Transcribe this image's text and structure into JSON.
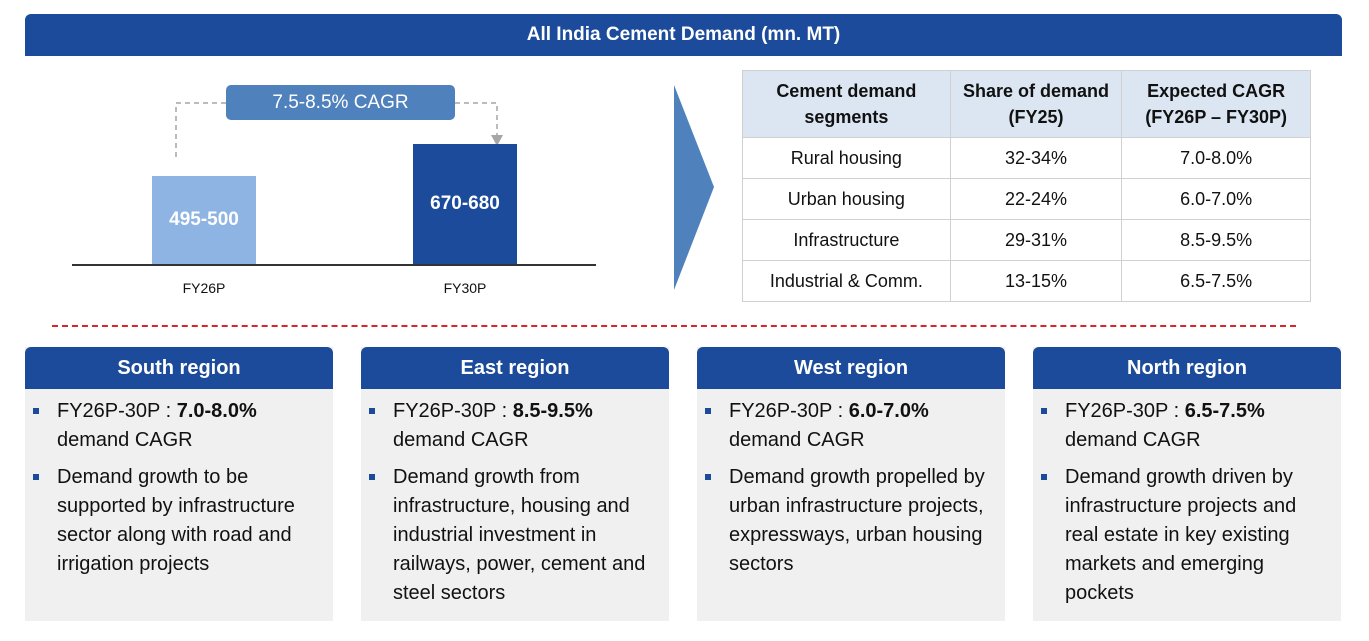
{
  "title": "All India Cement Demand (mn. MT)",
  "chart_data": {
    "type": "bar",
    "title": "All India Cement Demand (mn. MT)",
    "categories": [
      "FY26P",
      "FY30P"
    ],
    "values": [
      497.5,
      675
    ],
    "ranges": [
      [
        495,
        500
      ],
      [
        670,
        680
      ]
    ],
    "data_labels": [
      "495-500",
      "670-680"
    ],
    "annotation": "7.5-8.5% CAGR",
    "colors": [
      "#8eb4e3",
      "#1c4b9c"
    ],
    "ylim": [
      0,
      750
    ]
  },
  "table": {
    "headers": [
      "Cement demand segments",
      "Share of demand (FY25)",
      "Expected CAGR (FY26P – FY30P)"
    ],
    "rows": [
      [
        "Rural housing",
        "32-34%",
        "7.0-8.0%"
      ],
      [
        "Urban housing",
        "22-24%",
        "6.0-7.0%"
      ],
      [
        "Infrastructure",
        "29-31%",
        "8.5-9.5%"
      ],
      [
        "Industrial & Comm.",
        "13-15%",
        "6.5-7.5%"
      ]
    ]
  },
  "regions": [
    {
      "name": "South region",
      "prefix": "FY26P-30P : ",
      "cagr": "7.0-8.0%",
      "suffix": "demand CAGR",
      "desc": "Demand growth to be supported by infrastructure sector along with road and irrigation projects"
    },
    {
      "name": "East region",
      "prefix": "FY26P-30P : ",
      "cagr": "8.5-9.5%",
      "suffix": "demand CAGR",
      "desc": "Demand growth from infrastructure, housing and industrial investment in railways, power, cement and steel sectors"
    },
    {
      "name": "West region",
      "prefix": "FY26P-30P : ",
      "cagr": "6.0-7.0%",
      "suffix": "demand CAGR",
      "desc": "Demand growth propelled by urban infrastructure projects, expressways, urban housing sectors"
    },
    {
      "name": "North region",
      "prefix": "FY26P-30P : ",
      "cagr": "6.5-7.5%",
      "suffix": "demand CAGR",
      "desc": "Demand growth driven by infrastructure projects and real estate in key existing markets and emerging pockets"
    }
  ]
}
